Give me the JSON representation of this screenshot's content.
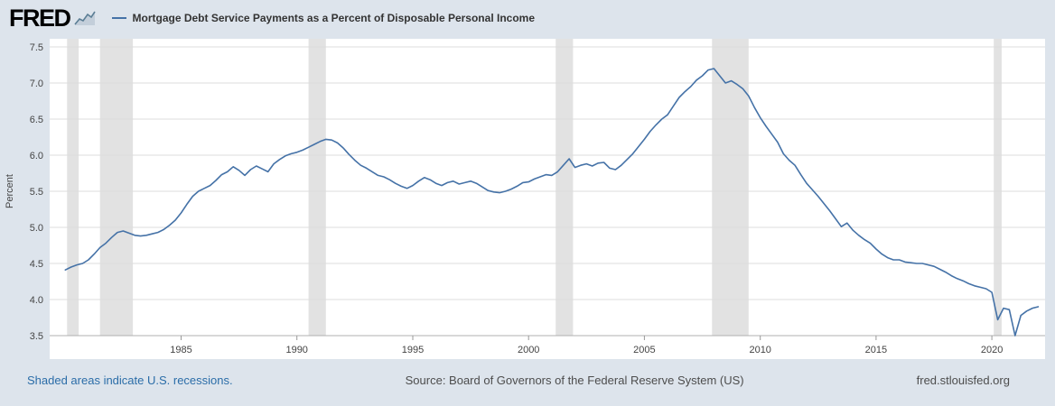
{
  "header": {
    "logo_text": "FRED",
    "legend_label": "Mortgage Debt Service Payments as a Percent of Disposable Personal Income"
  },
  "footer": {
    "recession_note": "Shaded areas indicate U.S. recessions.",
    "source": "Source: Board of Governors of the Federal Reserve System (US)",
    "site": "fred.stlouisfed.org"
  },
  "colors": {
    "page_bg": "#dde4ec",
    "accent": "#4572a7",
    "link": "#2b6da8",
    "plot_bg": "#ffffff",
    "gridline": "#dcdcdc",
    "recession_band": "#e2e2e2",
    "axis_text": "#444444"
  },
  "chart_data": {
    "type": "line",
    "title": "Mortgage Debt Service Payments as a Percent of Disposable Personal Income",
    "ylabel": "Percent",
    "xlabel": "",
    "legend_position": "top",
    "grid": "horizontal",
    "line_color": "#4572a7",
    "recession_color": "#e2e2e2",
    "frequency": "quarterly",
    "x_start": 1980.0,
    "x_step": 0.25,
    "x_domain": [
      1979.6,
      2022.1
    ],
    "ylim": [
      3.5,
      7.5
    ],
    "y_ticks": [
      3.5,
      4.0,
      4.5,
      5.0,
      5.5,
      6.0,
      6.5,
      7.0,
      7.5
    ],
    "x_ticks": [
      1985,
      1990,
      1995,
      2000,
      2005,
      2010,
      2015,
      2020
    ],
    "recessions": [
      [
        1980.08,
        1980.58
      ],
      [
        1981.5,
        1982.92
      ],
      [
        1990.5,
        1991.25
      ],
      [
        2001.17,
        2001.92
      ],
      [
        2007.92,
        2009.5
      ],
      [
        2020.08,
        2020.42
      ]
    ],
    "values": [
      4.41,
      4.45,
      4.48,
      4.5,
      4.55,
      4.63,
      4.72,
      4.78,
      4.86,
      4.93,
      4.95,
      4.92,
      4.89,
      4.88,
      4.89,
      4.91,
      4.93,
      4.97,
      5.03,
      5.1,
      5.2,
      5.32,
      5.43,
      5.5,
      5.54,
      5.58,
      5.65,
      5.73,
      5.77,
      5.84,
      5.79,
      5.72,
      5.8,
      5.85,
      5.81,
      5.77,
      5.88,
      5.94,
      5.99,
      6.02,
      6.04,
      6.07,
      6.11,
      6.15,
      6.19,
      6.22,
      6.21,
      6.17,
      6.1,
      6.01,
      5.93,
      5.86,
      5.82,
      5.77,
      5.72,
      5.7,
      5.66,
      5.61,
      5.57,
      5.54,
      5.58,
      5.64,
      5.69,
      5.66,
      5.61,
      5.58,
      5.62,
      5.64,
      5.6,
      5.62,
      5.64,
      5.61,
      5.56,
      5.51,
      5.49,
      5.48,
      5.5,
      5.53,
      5.57,
      5.62,
      5.63,
      5.67,
      5.7,
      5.73,
      5.72,
      5.77,
      5.86,
      5.95,
      5.83,
      5.86,
      5.88,
      5.85,
      5.89,
      5.9,
      5.82,
      5.8,
      5.86,
      5.94,
      6.02,
      6.12,
      6.22,
      6.33,
      6.42,
      6.5,
      6.56,
      6.68,
      6.8,
      6.88,
      6.95,
      7.04,
      7.1,
      7.18,
      7.2,
      7.1,
      7.0,
      7.03,
      6.98,
      6.92,
      6.82,
      6.66,
      6.52,
      6.4,
      6.29,
      6.18,
      6.02,
      5.93,
      5.86,
      5.73,
      5.61,
      5.52,
      5.43,
      5.33,
      5.23,
      5.12,
      5.01,
      5.06,
      4.96,
      4.89,
      4.83,
      4.78,
      4.7,
      4.63,
      4.58,
      4.55,
      4.55,
      4.52,
      4.51,
      4.5,
      4.5,
      4.48,
      4.46,
      4.42,
      4.38,
      4.33,
      4.29,
      4.26,
      4.22,
      4.19,
      4.17,
      4.15,
      4.1,
      3.72,
      3.88,
      3.86,
      3.5,
      3.78,
      3.84,
      3.88,
      3.9
    ]
  }
}
